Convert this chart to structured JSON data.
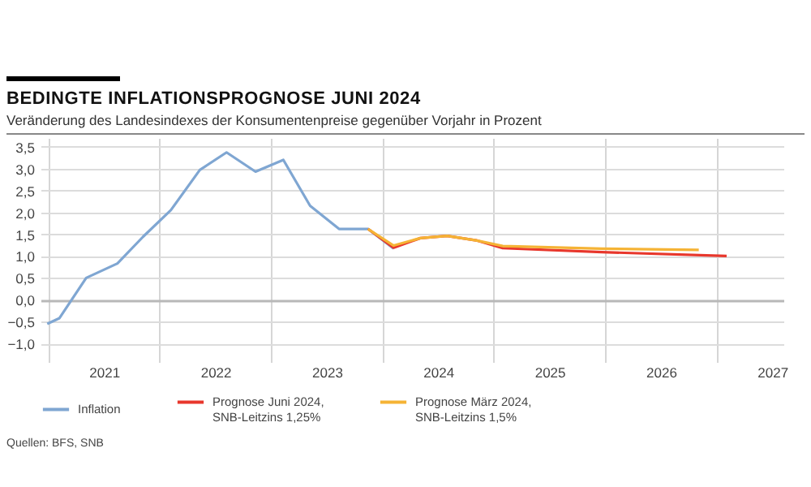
{
  "chart_data": {
    "type": "line",
    "title": "BEDINGTE INFLATIONSPROGNOSE JUNI 2024",
    "subtitle": "Veränderung des Landesindexes der Konsumentenpreise gegenüber Vorjahr in Prozent",
    "annotations": [
      "Quellen: BFS, SNB"
    ],
    "series": [
      {
        "name": "Inflation",
        "color": "#7fa6d2",
        "x": [
          2020.99,
          2021.1,
          2021.34,
          2021.62,
          2021.85,
          2022.1,
          2022.36,
          2022.6,
          2022.86,
          2023.11,
          2023.35,
          2023.61,
          2023.87,
          2024.1
        ],
        "values": [
          -0.55,
          -0.42,
          0.5,
          0.83,
          1.44,
          2.05,
          2.97,
          3.37,
          2.93,
          3.2,
          2.15,
          1.62,
          1.62,
          1.17
        ]
      },
      {
        "name": "Prognose Juni 2024, SNB-Leitzins 1,25%",
        "color": "#e8372c",
        "x": [
          2023.87,
          2024.1,
          2024.34,
          2024.58,
          2024.84,
          2025.08,
          2025.97,
          2027.09
        ],
        "values": [
          1.62,
          1.19,
          1.41,
          1.46,
          1.36,
          1.18,
          1.09,
          1.0
        ]
      },
      {
        "name": "Prognose März 2024, SNB-Leitzins 1,5%",
        "color": "#f5b335",
        "x": [
          2023.87,
          2024.1,
          2024.34,
          2024.58,
          2024.84,
          2025.08,
          2025.97,
          2026.84
        ],
        "values": [
          1.62,
          1.24,
          1.41,
          1.46,
          1.36,
          1.23,
          1.17,
          1.14
        ]
      }
    ],
    "xlim": [
      2020.93,
      2027.6
    ],
    "xticks": [
      {
        "value": 2021,
        "label": null
      },
      {
        "value": 2021.5,
        "label": "2021"
      },
      {
        "value": 2022,
        "label": null
      },
      {
        "value": 2022.5,
        "label": "2022"
      },
      {
        "value": 2023,
        "label": null
      },
      {
        "value": 2023.5,
        "label": "2023"
      },
      {
        "value": 2024,
        "label": null
      },
      {
        "value": 2024.5,
        "label": "2024"
      },
      {
        "value": 2025,
        "label": null
      },
      {
        "value": 2025.5,
        "label": "2025"
      },
      {
        "value": 2026,
        "label": null
      },
      {
        "value": 2026.5,
        "label": "2026"
      },
      {
        "value": 2027,
        "label": null
      },
      {
        "value": 2027.5,
        "label": "2027"
      }
    ],
    "ylim": [
      -1.2,
      3.7
    ],
    "yticks": [
      {
        "value": -1,
        "label": "−1,0"
      },
      {
        "value": -0.5,
        "label": "−0,5"
      },
      {
        "value": 0,
        "label": "0,0"
      },
      {
        "value": 0.5,
        "label": "0,5"
      },
      {
        "value": 1,
        "label": "1,0"
      },
      {
        "value": 1.5,
        "label": "1,5"
      },
      {
        "value": 2,
        "label": "2,0"
      },
      {
        "value": 2.5,
        "label": "2,5"
      },
      {
        "value": 3,
        "label": "3,0"
      },
      {
        "value": 3.5,
        "label": "3,5"
      }
    ],
    "grid": true,
    "legend": "bottom",
    "marker": "none",
    "line_style": "solid"
  }
}
